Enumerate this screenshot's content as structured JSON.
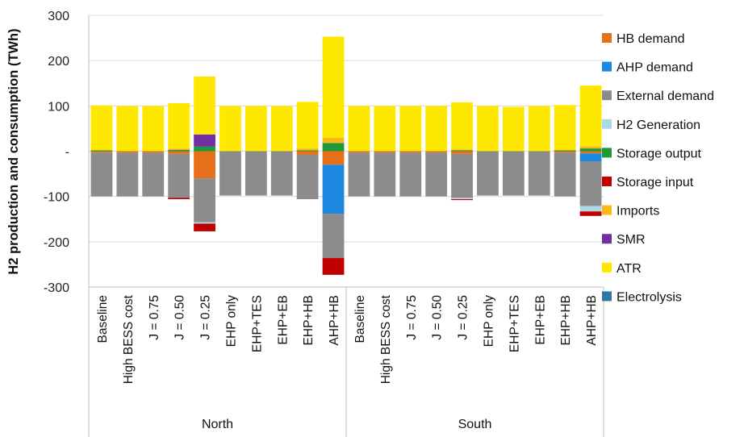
{
  "chart_data": {
    "type": "bar",
    "stacked": true,
    "ylabel": "H2 production and consumption (TWh)",
    "ylim": [
      -300,
      300
    ],
    "yticks": [
      300,
      200,
      100,
      0,
      -100,
      -200,
      -300
    ],
    "ytick_labels": [
      "300",
      "200",
      "100",
      "-",
      "-100",
      "-200",
      "-300"
    ],
    "grid": true,
    "legend_position": "right",
    "groups": [
      {
        "name": "North",
        "categories": [
          "Baseline",
          "High BESS cost",
          "J = 0.75",
          "J = 0.50",
          "J = 0.25",
          "EHP only",
          "EHP+TES",
          "EHP+EB",
          "EHP+HB",
          "AHP+HB"
        ]
      },
      {
        "name": "South",
        "categories": [
          "Baseline",
          "High BESS cost",
          "J = 0.75",
          "J = 0.50",
          "J = 0.25",
          "EHP only",
          "EHP+TES",
          "EHP+EB",
          "EHP+HB",
          "AHP+HB"
        ]
      }
    ],
    "series": [
      {
        "name": "HB demand",
        "color": "#E8701A",
        "values": [
          -3,
          -3,
          -3,
          -6,
          -60,
          0,
          0,
          0,
          -8,
          -30,
          -3,
          -3,
          -3,
          -3,
          -6,
          0,
          0,
          0,
          -3,
          -5
        ]
      },
      {
        "name": "AHP demand",
        "color": "#1E88E0",
        "values": [
          0,
          0,
          0,
          0,
          0,
          0,
          0,
          0,
          0,
          -108,
          0,
          0,
          0,
          0,
          0,
          0,
          0,
          0,
          0,
          -18
        ]
      },
      {
        "name": "External demand",
        "color": "#8C8C8C",
        "values": [
          -97,
          -97,
          -97,
          -97,
          -97,
          -98,
          -98,
          -98,
          -98,
          -98,
          -97,
          -97,
          -97,
          -97,
          -97,
          -98,
          -98,
          -98,
          -97,
          -98
        ]
      },
      {
        "name": "H2 Generation",
        "color": "#AED8E6",
        "values": [
          0,
          0,
          0,
          0,
          -3,
          0,
          0,
          0,
          0,
          0,
          0,
          0,
          0,
          0,
          -3,
          0,
          0,
          0,
          0,
          -12
        ]
      },
      {
        "name": "Storage output",
        "color": "#1E9A3A",
        "values": [
          2,
          0,
          0,
          3,
          10,
          0,
          0,
          0,
          2,
          18,
          0,
          0,
          0,
          0,
          2,
          0,
          0,
          0,
          2,
          6
        ]
      },
      {
        "name": "Storage input",
        "color": "#C00000",
        "values": [
          0,
          0,
          0,
          -3,
          -17,
          0,
          0,
          0,
          0,
          -37,
          0,
          0,
          0,
          0,
          -2,
          0,
          0,
          0,
          0,
          -10
        ]
      },
      {
        "name": "Imports",
        "color": "#FBB917",
        "values": [
          0,
          0,
          0,
          3,
          0,
          0,
          0,
          0,
          4,
          12,
          0,
          0,
          0,
          0,
          2,
          0,
          0,
          0,
          0,
          5
        ]
      },
      {
        "name": "SMR",
        "color": "#7030A0",
        "values": [
          0,
          0,
          0,
          0,
          27,
          0,
          0,
          0,
          0,
          0,
          0,
          0,
          0,
          0,
          0,
          0,
          0,
          0,
          0,
          0
        ]
      },
      {
        "name": "ATR",
        "color": "#FFE800",
        "values": [
          99,
          100,
          100,
          100,
          128,
          100,
          100,
          100,
          103,
          223,
          100,
          100,
          100,
          100,
          104,
          100,
          98,
          100,
          100,
          134
        ]
      },
      {
        "name": "Electrolysis",
        "color": "#2F7A9C",
        "values": [
          0,
          0,
          0,
          0,
          0,
          0,
          0,
          0,
          0,
          0,
          0,
          0,
          0,
          0,
          0,
          0,
          0,
          0,
          0,
          0
        ]
      }
    ],
    "legend_order": [
      "HB demand",
      "AHP demand",
      "External demand",
      "H2 Generation",
      "Storage output",
      "Storage input",
      "Imports",
      "SMR",
      "ATR",
      "Electrolysis"
    ]
  }
}
